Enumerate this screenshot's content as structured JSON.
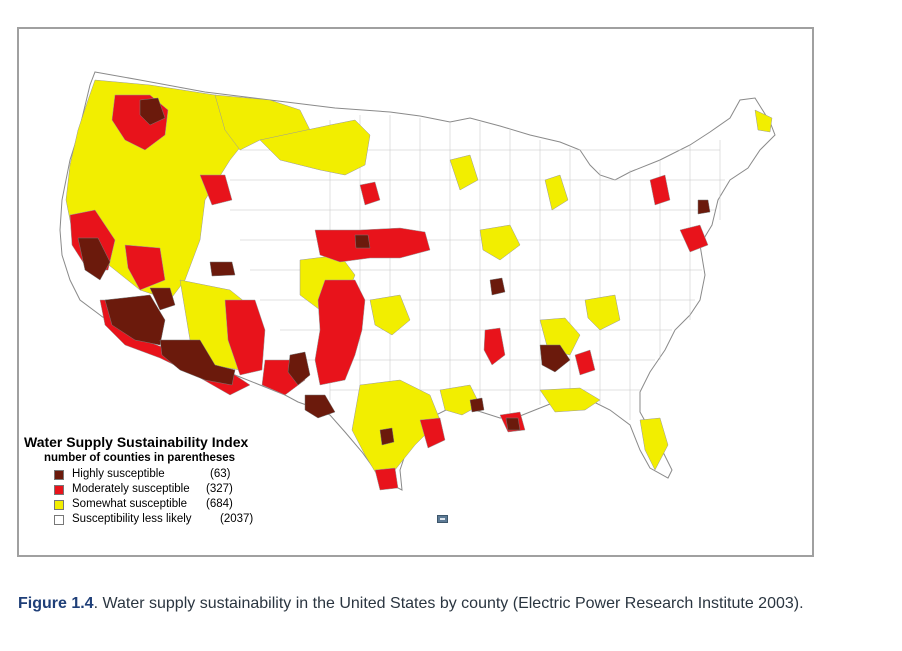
{
  "legend": {
    "title": "Water Supply Sustainability Index",
    "subtitle": "number of counties in parentheses",
    "items": [
      {
        "label": "Highly susceptible",
        "count": "(63)",
        "color": "#6b1a0c"
      },
      {
        "label": "Moderately susceptible",
        "count": "(327)",
        "color": "#e8131b"
      },
      {
        "label": "Somewhat susceptible",
        "count": "(684)",
        "color": "#f2ee00"
      },
      {
        "label": "Susceptibility less likely",
        "count": "(2037)",
        "color": "#ffffff"
      }
    ]
  },
  "caption": {
    "figure_label": "Figure 1.4",
    "text": ". Water supply sustainability in the United States by county (Electric Power Research Institute 2003)."
  },
  "colors": {
    "highly": "#6b1a0c",
    "moderate": "#e8131b",
    "somewhat": "#f2ee00",
    "less": "#ffffff",
    "county_border": "#9a9a9a",
    "frame_border": "#a0a0a0"
  },
  "icons": [
    "scroll-marker-icon"
  ]
}
